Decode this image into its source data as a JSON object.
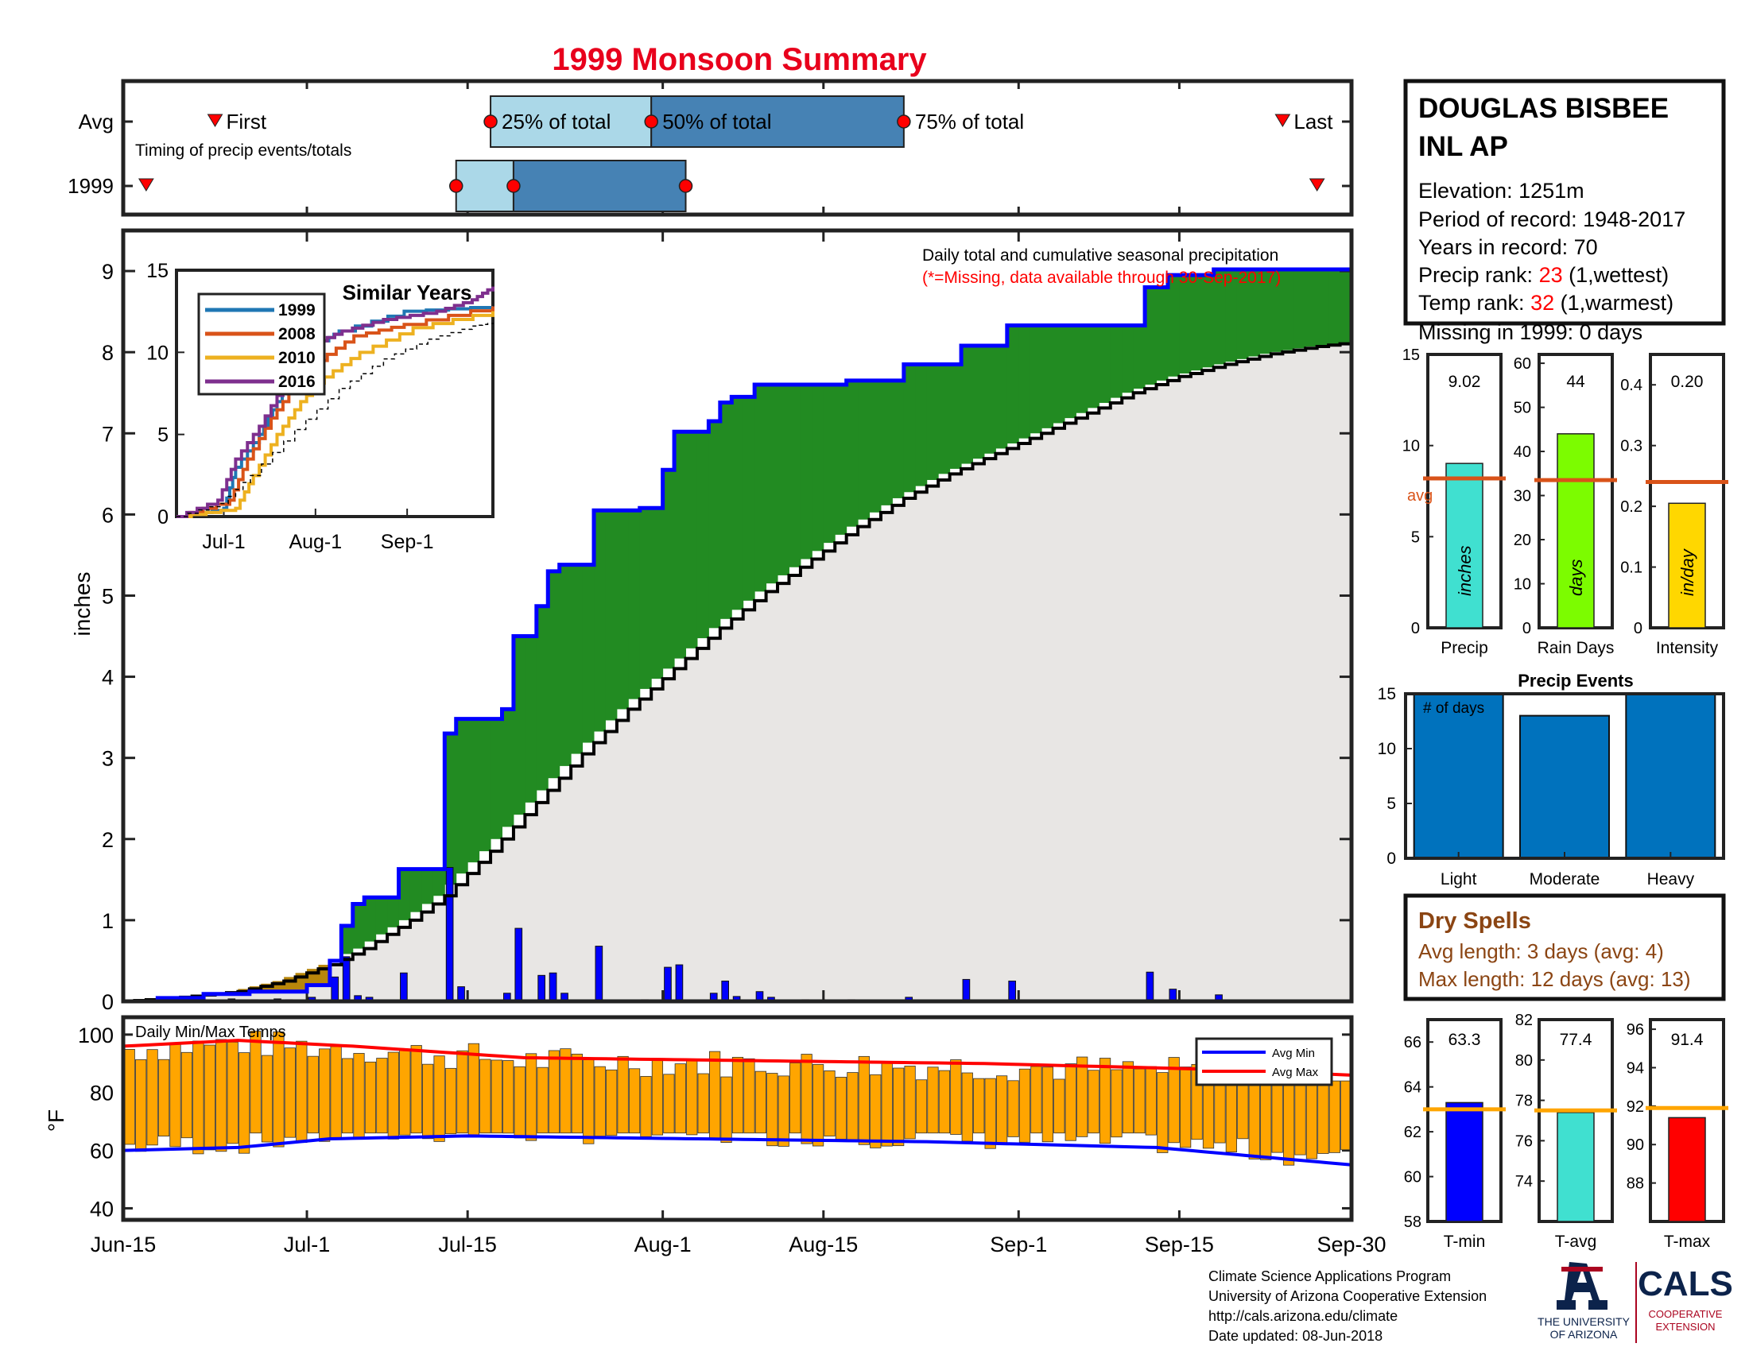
{
  "title": "1999 Monsoon Summary",
  "timing": {
    "rows": [
      "Avg",
      "1999"
    ],
    "caption": "Timing of precip events/totals",
    "first_label": "First",
    "last_label": "Last",
    "p25_label": "25% of total",
    "p50_label": "50% of total",
    "p75_label": "75% of total",
    "avg": {
      "first": "Jun-23",
      "p25": "Jul-17",
      "p50": "Jul-31",
      "p75": "Aug-22",
      "last": "Sep-24"
    },
    "year": {
      "first": "Jun-17",
      "p25": "Jul-14",
      "p50": "Jul-19",
      "p75": "Aug-3",
      "last": "Sep-27"
    }
  },
  "station": {
    "name_line1": "DOUGLAS BISBEE",
    "name_line2": "INL AP",
    "elevation": "Elevation: 1251m",
    "period": "Period of record: 1948-2017",
    "years": "Years in record: 70",
    "precip_rank_label": "Precip rank: ",
    "precip_rank_value": "23",
    "precip_rank_note": " (1,wettest)",
    "temp_rank_label": "Temp rank: ",
    "temp_rank_value": "32",
    "temp_rank_note": " (1,warmest)",
    "missing": "Missing in 1999: 0 days"
  },
  "main_chart": {
    "note1": "Daily total and cumulative seasonal precipitation",
    "note2": "(*=Missing, data available through 30-Sep-2017)",
    "ylabel": "inches",
    "ylim": [
      0,
      9.5
    ],
    "yticks": [
      "0",
      "1",
      "2",
      "3",
      "4",
      "5",
      "6",
      "7",
      "8",
      "9"
    ]
  },
  "x_axis": {
    "ticks": [
      {
        "label": "Jun-15",
        "day": 0
      },
      {
        "label": "Jul-1",
        "day": 16
      },
      {
        "label": "Jul-15",
        "day": 30
      },
      {
        "label": "Aug-1",
        "day": 47
      },
      {
        "label": "Aug-15",
        "day": 61
      },
      {
        "label": "Sep-1",
        "day": 78
      },
      {
        "label": "Sep-15",
        "day": 92
      },
      {
        "label": "Sep-30",
        "day": 107
      }
    ]
  },
  "inset": {
    "title": "Similar Years",
    "series": [
      {
        "name": "1999",
        "color": "#1f77b4"
      },
      {
        "name": "2008",
        "color": "#d95319"
      },
      {
        "name": "2010",
        "color": "#edb120"
      },
      {
        "name": "2016",
        "color": "#7e2f8e"
      }
    ],
    "yticks": [
      "0",
      "5",
      "10",
      "15"
    ],
    "xticks": [
      "Jul-1",
      "Aug-1",
      "Sep-1"
    ]
  },
  "stats": {
    "precip": {
      "value": "9.02",
      "label": "Precip",
      "unit": "inches",
      "avg": 8.2,
      "val": 9.02,
      "ymax": 15,
      "ticks": [
        "0",
        "5",
        "10",
        "15"
      ],
      "color": "#40e0d0"
    },
    "raindays": {
      "value": "44",
      "label": "Rain Days",
      "unit": "days",
      "avg": 33.5,
      "val": 44,
      "ymax": 62,
      "ticks": [
        "0",
        "10",
        "20",
        "30",
        "40",
        "50",
        "60"
      ],
      "color": "#7cfc00"
    },
    "intensity": {
      "value": "0.20",
      "label": "Intensity",
      "unit": "in/day",
      "avg": 0.24,
      "val": 0.205,
      "ymax": 0.45,
      "ticks": [
        "0",
        "0.1",
        "0.2",
        "0.3",
        "0.4"
      ],
      "color": "#ffd700"
    },
    "avg_label": "avg"
  },
  "events": {
    "title": "Precip Events",
    "ylabel": "# of days",
    "categories": [
      "Light",
      "Moderate",
      "Heavy"
    ],
    "values": [
      15,
      13,
      15
    ],
    "yticks": [
      "0",
      "5",
      "10",
      "15"
    ]
  },
  "dry": {
    "title": "Dry Spells",
    "avg": "Avg length: 3 days (avg: 4)",
    "max": "Max length: 12 days (avg: 13)"
  },
  "temps": {
    "label": "Daily Min/Max Temps",
    "ylabel": "°F",
    "yticks": [
      "40",
      "60",
      "80",
      "100"
    ],
    "legend": [
      "Avg Min",
      "Avg Max"
    ],
    "colors": {
      "bar": "#ffa500",
      "min": "#0000ff",
      "max": "#ff0000"
    }
  },
  "temp_stats": {
    "tmin": {
      "value": "63.3",
      "label": "T-min",
      "val": 63.3,
      "avg": 63.0,
      "range": [
        58,
        67
      ],
      "ticks": [
        "58",
        "60",
        "62",
        "64",
        "66"
      ],
      "color": "#0000ff"
    },
    "tavg": {
      "value": "77.4",
      "label": "T-avg",
      "val": 77.4,
      "avg": 77.5,
      "range": [
        72,
        82
      ],
      "ticks": [
        "74",
        "76",
        "78",
        "80",
        "82"
      ],
      "color": "#40e0d0"
    },
    "tmax": {
      "value": "91.4",
      "label": "T-max",
      "val": 91.4,
      "avg": 91.9,
      "range": [
        86,
        96.5
      ],
      "ticks": [
        "88",
        "90",
        "92",
        "94",
        "96"
      ],
      "color": "#ff0000"
    }
  },
  "footer": {
    "line1": "Climate Science Applications Program",
    "line2": "University of Arizona Cooperative Extension",
    "line3": "http://cals.arizona.edu/climate",
    "line4": " Date updated: 08-Jun-2018",
    "ua_line1": "THE UNIVERSITY",
    "ua_line2": "OF ARIZONA",
    "cals": "CALS",
    "cals_sub1": "COOPERATIVE",
    "cals_sub2": "EXTENSION"
  },
  "chart_data": [
    {
      "type": "bar",
      "name": "daily precipitation",
      "x_units": "day since Jun-15",
      "points": [
        [
          3,
          0.02
        ],
        [
          5,
          0.02
        ],
        [
          7,
          0.02
        ],
        [
          9,
          0.03
        ],
        [
          11,
          0.02
        ],
        [
          13,
          0.03
        ],
        [
          14,
          0.02
        ],
        [
          16,
          0.05
        ],
        [
          18,
          0.3
        ],
        [
          19,
          0.55
        ],
        [
          20,
          0.07
        ],
        [
          21,
          0.05
        ],
        [
          24,
          0.35
        ],
        [
          28,
          1.65
        ],
        [
          29,
          0.18
        ],
        [
          33,
          0.1
        ],
        [
          34,
          0.9
        ],
        [
          36,
          0.32
        ],
        [
          37,
          0.35
        ],
        [
          38,
          0.1
        ],
        [
          41,
          0.68
        ],
        [
          45,
          0.02
        ],
        [
          47,
          0.42
        ],
        [
          48,
          0.45
        ],
        [
          51,
          0.1
        ],
        [
          52,
          0.25
        ],
        [
          53,
          0.06
        ],
        [
          55,
          0.12
        ],
        [
          56,
          0.05
        ],
        [
          59,
          0.02
        ],
        [
          63,
          0.02
        ],
        [
          68,
          0.05
        ],
        [
          73,
          0.27
        ],
        [
          77,
          0.25
        ],
        [
          89,
          0.36
        ],
        [
          91,
          0.15
        ],
        [
          95,
          0.08
        ]
      ]
    },
    {
      "type": "line",
      "name": "cumulative 1999",
      "x_units": "day since Jun-15",
      "points": [
        [
          0,
          0
        ],
        [
          3,
          0.04
        ],
        [
          7,
          0.09
        ],
        [
          11,
          0.12
        ],
        [
          16,
          0.2
        ],
        [
          18,
          0.5
        ],
        [
          19,
          0.93
        ],
        [
          20,
          1.2
        ],
        [
          21,
          1.28
        ],
        [
          24,
          1.63
        ],
        [
          28,
          3.3
        ],
        [
          29,
          3.48
        ],
        [
          33,
          3.6
        ],
        [
          34,
          4.5
        ],
        [
          36,
          4.87
        ],
        [
          37,
          5.3
        ],
        [
          38,
          5.38
        ],
        [
          41,
          6.05
        ],
        [
          45,
          6.08
        ],
        [
          47,
          6.55
        ],
        [
          48,
          7.02
        ],
        [
          51,
          7.15
        ],
        [
          52,
          7.38
        ],
        [
          53,
          7.45
        ],
        [
          55,
          7.6
        ],
        [
          63,
          7.65
        ],
        [
          68,
          7.85
        ],
        [
          73,
          8.08
        ],
        [
          77,
          8.33
        ],
        [
          89,
          8.8
        ],
        [
          91,
          8.95
        ],
        [
          95,
          9.02
        ],
        [
          107,
          9.02
        ]
      ]
    },
    {
      "type": "line",
      "name": "cumulative average",
      "x_units": "day since Jun-15",
      "points": [
        [
          0,
          0
        ],
        [
          5,
          0.05
        ],
        [
          10,
          0.12
        ],
        [
          14,
          0.25
        ],
        [
          18,
          0.45
        ],
        [
          21,
          0.65
        ],
        [
          25,
          1.0
        ],
        [
          28,
          1.3
        ],
        [
          32,
          1.85
        ],
        [
          36,
          2.45
        ],
        [
          40,
          3.05
        ],
        [
          44,
          3.6
        ],
        [
          48,
          4.1
        ],
        [
          52,
          4.6
        ],
        [
          56,
          5.05
        ],
        [
          60,
          5.45
        ],
        [
          64,
          5.85
        ],
        [
          68,
          6.2
        ],
        [
          72,
          6.5
        ],
        [
          76,
          6.75
        ],
        [
          80,
          7.0
        ],
        [
          84,
          7.25
        ],
        [
          88,
          7.5
        ],
        [
          92,
          7.7
        ],
        [
          96,
          7.85
        ],
        [
          100,
          7.98
        ],
        [
          104,
          8.07
        ],
        [
          107,
          8.12
        ]
      ]
    },
    {
      "type": "line",
      "name": "Similar Years",
      "x_units": "day since Jun-15",
      "series": [
        {
          "name": "1999",
          "points": [
            [
              0,
              0
            ],
            [
              16,
              0.5
            ],
            [
              20,
              3
            ],
            [
              28,
              5
            ],
            [
              34,
              7
            ],
            [
              41,
              9
            ],
            [
              48,
              10.5
            ],
            [
              55,
              11.3
            ],
            [
              77,
              12.5
            ],
            [
              107,
              12.8
            ]
          ]
        },
        {
          "name": "2008",
          "points": [
            [
              0,
              0
            ],
            [
              18,
              1
            ],
            [
              24,
              3.5
            ],
            [
              32,
              6
            ],
            [
              40,
              8
            ],
            [
              48,
              9.5
            ],
            [
              60,
              11
            ],
            [
              77,
              11.7
            ],
            [
              107,
              12.8
            ]
          ]
        },
        {
          "name": "2010",
          "points": [
            [
              0,
              0
            ],
            [
              20,
              0.5
            ],
            [
              26,
              2.5
            ],
            [
              34,
              5
            ],
            [
              42,
              7
            ],
            [
              50,
              8.5
            ],
            [
              62,
              10
            ],
            [
              80,
              11.5
            ],
            [
              107,
              12.5
            ]
          ]
        },
        {
          "name": "2016",
          "points": [
            [
              0,
              0
            ],
            [
              14,
              1
            ],
            [
              20,
              3.5
            ],
            [
              28,
              5.5
            ],
            [
              36,
              8
            ],
            [
              46,
              10.5
            ],
            [
              56,
              11.3
            ],
            [
              70,
              12
            ],
            [
              88,
              12.5
            ],
            [
              100,
              13.2
            ],
            [
              107,
              14
            ]
          ]
        },
        {
          "name": "average",
          "points": [
            [
              0,
              0
            ],
            [
              15,
              0.8
            ],
            [
              25,
              2.5
            ],
            [
              40,
              5.3
            ],
            [
              55,
              7.8
            ],
            [
              70,
              9.6
            ],
            [
              85,
              10.8
            ],
            [
              100,
              11.6
            ],
            [
              107,
              11.8
            ]
          ]
        }
      ]
    },
    {
      "type": "bar",
      "name": "Daily Min/Max Temps",
      "x_units": "day since Jun-15",
      "tmin_min": 52,
      "tmin_max": 66,
      "tmax_min": 84,
      "tmax_max": 103,
      "avg_min": {
        "points": [
          [
            0,
            60
          ],
          [
            10,
            61
          ],
          [
            18,
            64
          ],
          [
            30,
            65
          ],
          [
            50,
            64
          ],
          [
            70,
            63
          ],
          [
            90,
            61
          ],
          [
            107,
            55
          ]
        ]
      },
      "avg_max": {
        "points": [
          [
            0,
            96
          ],
          [
            10,
            98
          ],
          [
            20,
            96
          ],
          [
            35,
            92
          ],
          [
            55,
            91
          ],
          [
            75,
            90
          ],
          [
            95,
            88
          ],
          [
            107,
            86
          ]
        ]
      }
    }
  ]
}
